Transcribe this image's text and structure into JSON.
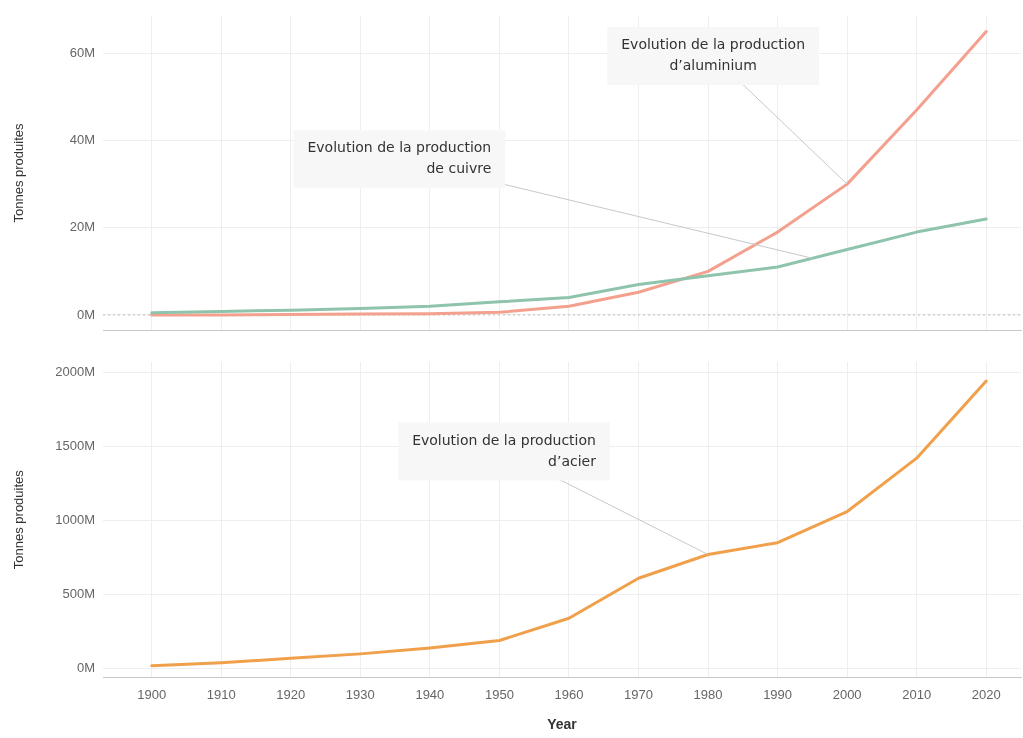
{
  "chart_data": [
    {
      "type": "line",
      "ylabel": "Tonnes produites",
      "x": [
        1900,
        1910,
        1920,
        1930,
        1940,
        1950,
        1960,
        1970,
        1980,
        1990,
        2000,
        2010,
        2020
      ],
      "xlim": [
        1893,
        2025
      ],
      "xticks": [
        1900,
        1910,
        1920,
        1930,
        1940,
        1950,
        1960,
        1970,
        1980,
        1990,
        2000,
        2010,
        2020
      ],
      "ylim": [
        -3.5,
        68.6
      ],
      "yticks": [
        {
          "value": 0,
          "label": "0M"
        },
        {
          "value": 20,
          "label": "20M"
        },
        {
          "value": 40,
          "label": "40M"
        },
        {
          "value": 60,
          "label": "60M"
        }
      ],
      "tick_labels": "y",
      "grid": true,
      "legend": false,
      "marker": "none",
      "line_style": "solid",
      "series": [
        {
          "color": "#8fc4ac",
          "values": [
            0.5,
            0.8,
            1.1,
            1.5,
            2,
            3,
            4,
            7,
            9,
            11,
            15,
            19,
            22
          ]
        },
        {
          "color": "#f4a08e",
          "values": [
            0,
            0,
            0.1,
            0.2,
            0.3,
            0.6,
            2,
            5.2,
            10,
            19,
            30,
            47,
            65
          ]
        }
      ],
      "ref_lines": [
        {
          "axis": "y",
          "value": 0,
          "color": "#bbbbbb",
          "line_style": "dotted"
        }
      ],
      "annotations": [
        {
          "text": "Evolution de la production\nd’aluminium",
          "x": 2000,
          "y": 30
        },
        {
          "text": "Evolution de la production\nde cuivre",
          "x": 1995,
          "y": 13
        }
      ]
    },
    {
      "type": "line",
      "xlabel": "Year",
      "ylabel": "Tonnes produites",
      "x": [
        1900,
        1910,
        1920,
        1930,
        1940,
        1950,
        1960,
        1970,
        1980,
        1990,
        2000,
        2010,
        2020
      ],
      "xlim": [
        1893,
        2025
      ],
      "xticks": [
        1900,
        1910,
        1920,
        1930,
        1940,
        1950,
        1960,
        1970,
        1980,
        1990,
        2000,
        2010,
        2020
      ],
      "ylim": [
        -60,
        2070
      ],
      "yticks": [
        {
          "value": 0,
          "label": "0M"
        },
        {
          "value": 500,
          "label": "500M"
        },
        {
          "value": 1000,
          "label": "1000M"
        },
        {
          "value": 1500,
          "label": "1500M"
        },
        {
          "value": 2000,
          "label": "2000M"
        }
      ],
      "grid": true,
      "legend": false,
      "marker": "none",
      "line_style": "solid",
      "series": [
        {
          "color": "#f0a04b",
          "values": [
            20,
            40,
            70,
            100,
            140,
            190,
            340,
            610,
            770,
            850,
            1060,
            1420,
            1940
          ]
        }
      ],
      "annotations": [
        {
          "text": "Evolution de la production\nd’acier",
          "x": 1980,
          "y": 770
        }
      ]
    }
  ]
}
